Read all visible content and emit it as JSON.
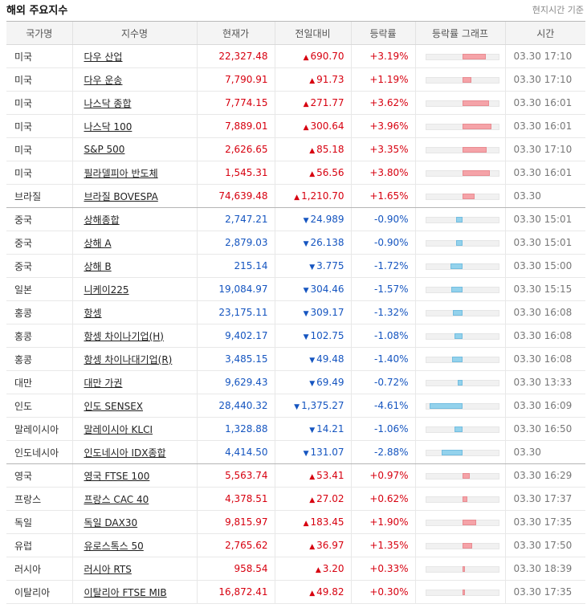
{
  "header": {
    "title": "해외 주요지수",
    "note": "현지시간 기준"
  },
  "columns": [
    "국가명",
    "지수명",
    "현재가",
    "전일대비",
    "등락률",
    "등락률 그래프",
    "시간"
  ],
  "colors": {
    "up": "#d7000f",
    "down": "#1555c0",
    "up_bar": "#f5a3a8",
    "down_bar": "#93d2ec"
  },
  "groups": [
    {
      "name": "americas",
      "rows": [
        {
          "country": "미국",
          "name": "다우 산업",
          "price": "22,327.48",
          "change": "690.70",
          "rate": "+3.19%",
          "dir": "up",
          "pct": 3.19,
          "time": "03.30 17:10"
        },
        {
          "country": "미국",
          "name": "다우 운송",
          "price": "7,790.91",
          "change": "91.73",
          "rate": "+1.19%",
          "dir": "up",
          "pct": 1.19,
          "time": "03.30 17:10"
        },
        {
          "country": "미국",
          "name": "나스닥 종합",
          "price": "7,774.15",
          "change": "271.77",
          "rate": "+3.62%",
          "dir": "up",
          "pct": 3.62,
          "time": "03.30 16:01"
        },
        {
          "country": "미국",
          "name": "나스닥 100",
          "price": "7,889.01",
          "change": "300.64",
          "rate": "+3.96%",
          "dir": "up",
          "pct": 3.96,
          "time": "03.30 16:01"
        },
        {
          "country": "미국",
          "name": "S&P 500",
          "price": "2,626.65",
          "change": "85.18",
          "rate": "+3.35%",
          "dir": "up",
          "pct": 3.35,
          "time": "03.30 17:10"
        },
        {
          "country": "미국",
          "name": "필라델피아 반도체",
          "price": "1,545.31",
          "change": "56.56",
          "rate": "+3.80%",
          "dir": "up",
          "pct": 3.8,
          "time": "03.30 16:01"
        },
        {
          "country": "브라질",
          "name": "브라질 BOVESPA",
          "price": "74,639.48",
          "change": "1,210.70",
          "rate": "+1.65%",
          "dir": "up",
          "pct": 1.65,
          "time": "03.30"
        }
      ]
    },
    {
      "name": "asia",
      "rows": [
        {
          "country": "중국",
          "name": "상해종합",
          "price": "2,747.21",
          "change": "24.989",
          "rate": "-0.90%",
          "dir": "down",
          "pct": 0.9,
          "time": "03.30 15:01"
        },
        {
          "country": "중국",
          "name": "상해 A",
          "price": "2,879.03",
          "change": "26.138",
          "rate": "-0.90%",
          "dir": "down",
          "pct": 0.9,
          "time": "03.30 15:01"
        },
        {
          "country": "중국",
          "name": "상해 B",
          "price": "215.14",
          "change": "3.775",
          "rate": "-1.72%",
          "dir": "down",
          "pct": 1.72,
          "time": "03.30 15:00"
        },
        {
          "country": "일본",
          "name": "니케이225",
          "price": "19,084.97",
          "change": "304.46",
          "rate": "-1.57%",
          "dir": "down",
          "pct": 1.57,
          "time": "03.30 15:15"
        },
        {
          "country": "홍콩",
          "name": "항셍",
          "price": "23,175.11",
          "change": "309.17",
          "rate": "-1.32%",
          "dir": "down",
          "pct": 1.32,
          "time": "03.30 16:08"
        },
        {
          "country": "홍콩",
          "name": "항셍 차이나기업(H)",
          "price": "9,402.17",
          "change": "102.75",
          "rate": "-1.08%",
          "dir": "down",
          "pct": 1.08,
          "time": "03.30 16:08"
        },
        {
          "country": "홍콩",
          "name": "항셍 차이나대기업(R)",
          "price": "3,485.15",
          "change": "49.48",
          "rate": "-1.40%",
          "dir": "down",
          "pct": 1.4,
          "time": "03.30 16:08"
        },
        {
          "country": "대만",
          "name": "대만 가권",
          "price": "9,629.43",
          "change": "69.49",
          "rate": "-0.72%",
          "dir": "down",
          "pct": 0.72,
          "time": "03.30 13:33"
        },
        {
          "country": "인도",
          "name": "인도 SENSEX",
          "price": "28,440.32",
          "change": "1,375.27",
          "rate": "-4.61%",
          "dir": "down",
          "pct": 4.61,
          "time": "03.30 16:09"
        },
        {
          "country": "말레이시아",
          "name": "말레이시아 KLCI",
          "price": "1,328.88",
          "change": "14.21",
          "rate": "-1.06%",
          "dir": "down",
          "pct": 1.06,
          "time": "03.30 16:50"
        },
        {
          "country": "인도네시아",
          "name": "인도네시아 IDX종합",
          "price": "4,414.50",
          "change": "131.07",
          "rate": "-2.88%",
          "dir": "down",
          "pct": 2.88,
          "time": "03.30"
        }
      ]
    },
    {
      "name": "europe",
      "rows": [
        {
          "country": "영국",
          "name": "영국 FTSE 100",
          "price": "5,563.74",
          "change": "53.41",
          "rate": "+0.97%",
          "dir": "up",
          "pct": 0.97,
          "time": "03.30 16:29"
        },
        {
          "country": "프랑스",
          "name": "프랑스 CAC 40",
          "price": "4,378.51",
          "change": "27.02",
          "rate": "+0.62%",
          "dir": "up",
          "pct": 0.62,
          "time": "03.30 17:37"
        },
        {
          "country": "독일",
          "name": "독일 DAX30",
          "price": "9,815.97",
          "change": "183.45",
          "rate": "+1.90%",
          "dir": "up",
          "pct": 1.9,
          "time": "03.30 17:35"
        },
        {
          "country": "유럽",
          "name": "유로스톡스 50",
          "price": "2,765.62",
          "change": "36.97",
          "rate": "+1.35%",
          "dir": "up",
          "pct": 1.35,
          "time": "03.30 17:50"
        },
        {
          "country": "러시아",
          "name": "러시아 RTS",
          "price": "958.54",
          "change": "3.20",
          "rate": "+0.33%",
          "dir": "up",
          "pct": 0.33,
          "time": "03.30 18:39"
        },
        {
          "country": "이탈리아",
          "name": "이탈리아 FTSE MIB",
          "price": "16,872.41",
          "change": "49.82",
          "rate": "+0.30%",
          "dir": "up",
          "pct": 0.3,
          "time": "03.30 17:35"
        }
      ]
    }
  ]
}
